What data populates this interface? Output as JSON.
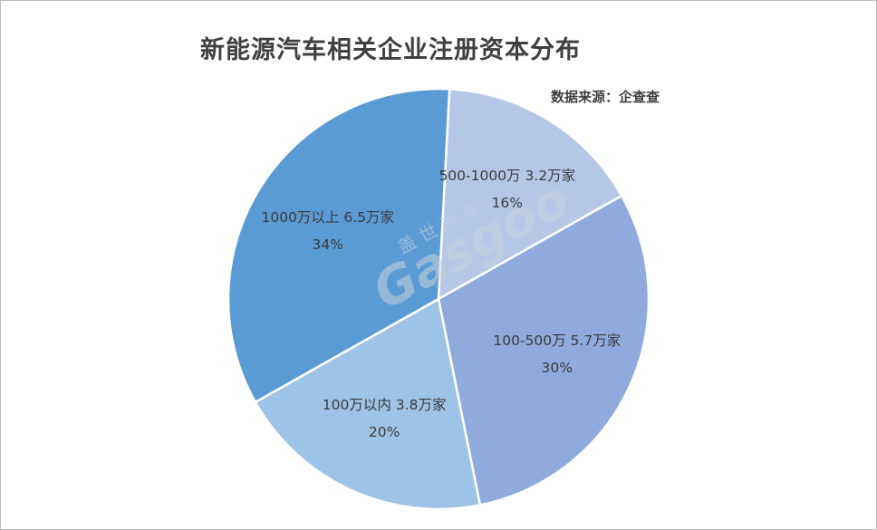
{
  "chart_data": {
    "type": "pie",
    "title": "新能源汽车相关企业注册资本分布",
    "source": "数据来源：企查查",
    "watermark": "盖世汽车 Gasgoo",
    "slices": [
      {
        "name": "500-1000万",
        "count": "3.2万家",
        "percent_label": "16%",
        "value": 16,
        "color": "#b4c7e7"
      },
      {
        "name": "100-500万",
        "count": "5.7万家",
        "percent_label": "30%",
        "value": 30,
        "color": "#8faadc"
      },
      {
        "name": "100万以内",
        "count": "3.8万家",
        "percent_label": "20%",
        "value": 20,
        "color": "#9dc3e6"
      },
      {
        "name": "1000万以上",
        "count": "6.5万家",
        "percent_label": "34%",
        "value": 34,
        "color": "#5b9bd5"
      }
    ]
  }
}
